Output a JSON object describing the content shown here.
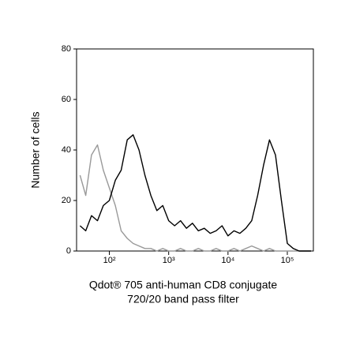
{
  "chart_data": {
    "type": "line",
    "xlabel": [
      "Qdot® 705 anti-human CD8 conjugate",
      "720/20 band pass filter"
    ],
    "ylabel": "Number of cells",
    "x": [
      32,
      40,
      50,
      63,
      79,
      100,
      126,
      158,
      200,
      251,
      316,
      398,
      501,
      631,
      794,
      1000,
      1259,
      1585,
      1995,
      2512,
      3162,
      3981,
      5012,
      6310,
      7943,
      10000,
      12589,
      15849,
      19953,
      25119,
      31623,
      39811,
      50119,
      63096,
      79433,
      100000,
      125893,
      158489,
      199526,
      251189
    ],
    "series": [
      {
        "color": "#999999",
        "values": [
          30,
          22,
          38,
          42,
          32,
          25,
          18,
          8,
          5,
          3,
          2,
          1,
          1,
          0,
          1,
          0,
          0,
          1,
          0,
          0,
          1,
          0,
          0,
          1,
          0,
          0,
          1,
          0,
          1,
          2,
          1,
          0,
          1,
          0,
          0,
          0,
          0,
          0,
          0,
          0
        ]
      },
      {
        "color": "#000000",
        "values": [
          10,
          8,
          14,
          12,
          18,
          20,
          28,
          32,
          44,
          46,
          40,
          30,
          22,
          16,
          18,
          12,
          10,
          12,
          9,
          11,
          8,
          9,
          7,
          8,
          10,
          6,
          8,
          7,
          9,
          12,
          22,
          34,
          44,
          38,
          20,
          3,
          1,
          0,
          0,
          0
        ]
      }
    ],
    "xscale": "log",
    "xlim": [
      28,
      275000
    ],
    "xticks": [
      {
        "value": 100,
        "label": "10²"
      },
      {
        "value": 1000,
        "label": "10³"
      },
      {
        "value": 10000,
        "label": "10⁴"
      },
      {
        "value": 100000,
        "label": "10⁵"
      }
    ],
    "ylim": [
      0,
      80
    ],
    "yticks": [
      0,
      20,
      40,
      60,
      80
    ]
  }
}
